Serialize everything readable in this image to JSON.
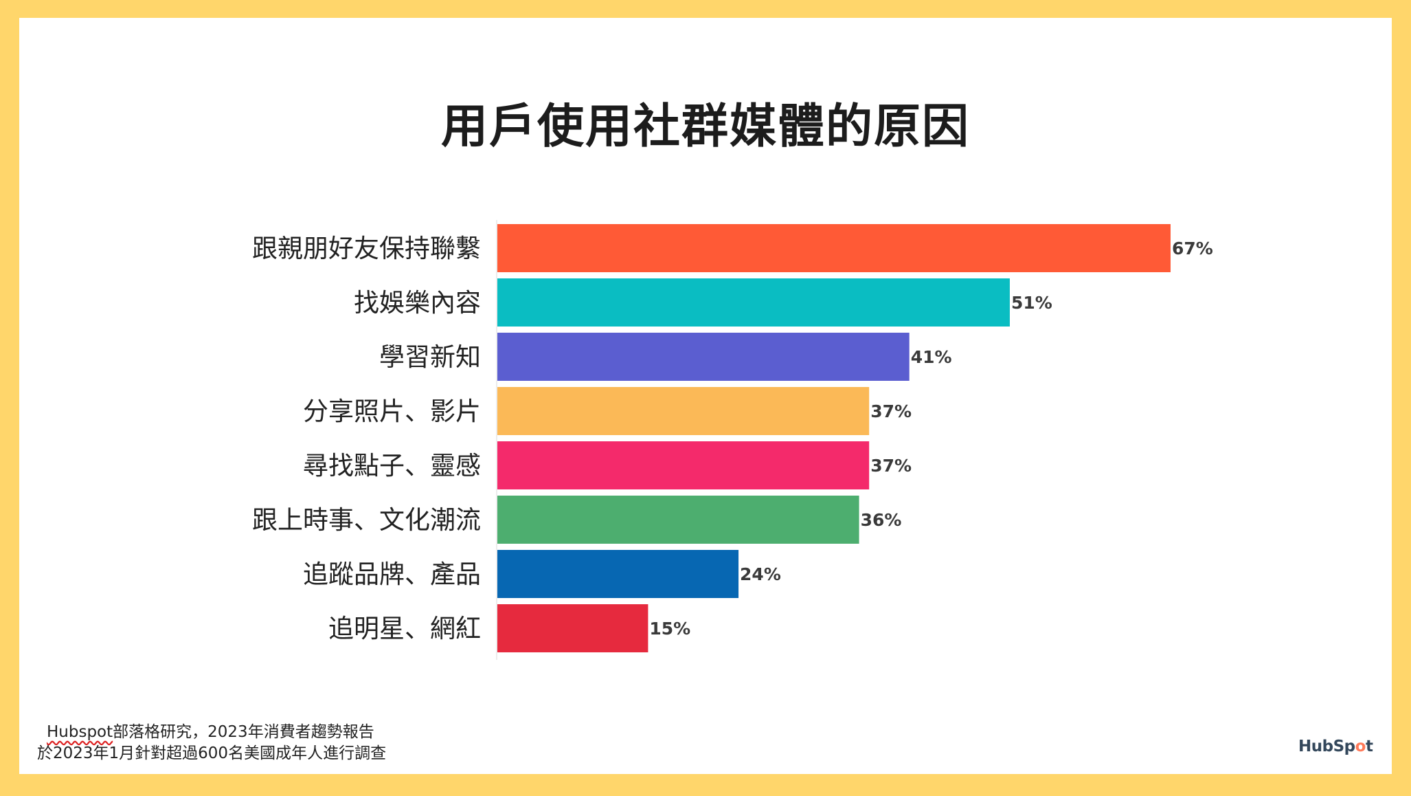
{
  "title": "用戶使用社群媒體的原因",
  "chart_data": {
    "type": "bar",
    "orientation": "horizontal",
    "title": "用戶使用社群媒體的原因",
    "xlabel": "",
    "ylabel": "",
    "unit": "%",
    "xlim": [
      0,
      67
    ],
    "grid": false,
    "categories": [
      "跟親朋好友保持聯繫",
      "找娛樂內容",
      "學習新知",
      "分享照片、影片",
      "尋找點子、靈感",
      "跟上時事、文化潮流",
      "追蹤品牌、產品",
      "追明星、網紅"
    ],
    "values": [
      67,
      51,
      41,
      37,
      37,
      36,
      24,
      15
    ],
    "value_labels": [
      "67%",
      "51%",
      "41%",
      "37%",
      "37%",
      "36%",
      "24%",
      "15%"
    ],
    "colors": [
      "#FF5A36",
      "#0ABDC2",
      "#5B5ED0",
      "#FBB957",
      "#F42A6B",
      "#4DAE6F",
      "#0767B2",
      "#E62A3E"
    ]
  },
  "source": {
    "line1_brand": "Hubspot",
    "line1_rest": "部落格研究，2023年消費者趨勢報告",
    "line2": "於2023年1月針對超過600名美國成年人進行調查"
  },
  "logo": {
    "part1": "HubSp",
    "part2": "o",
    "part3": "t"
  }
}
